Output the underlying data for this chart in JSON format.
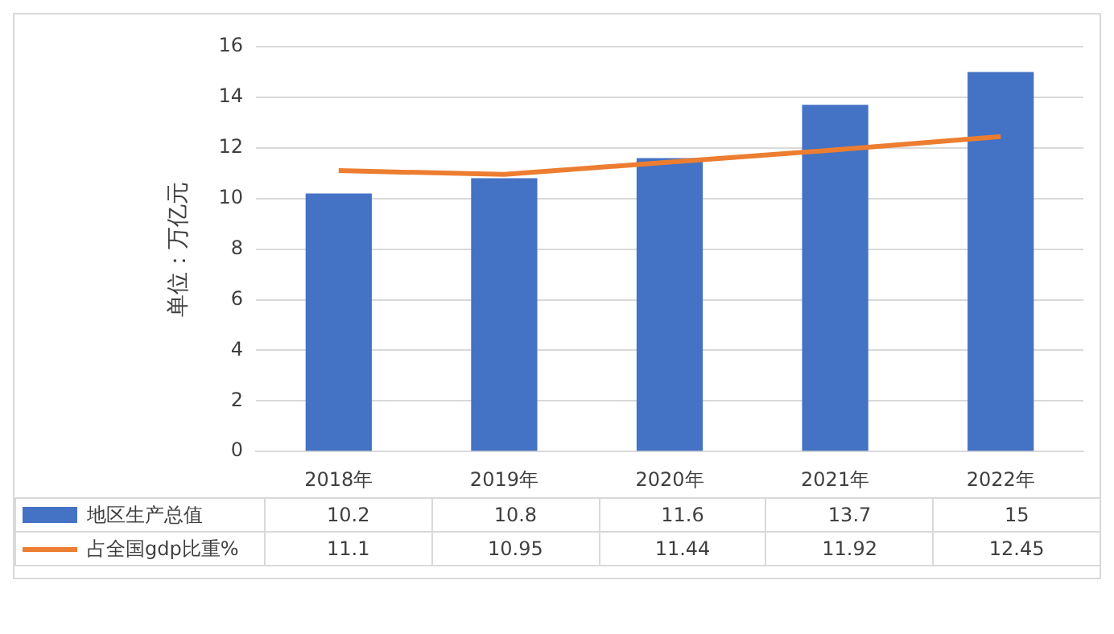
{
  "chart_data": {
    "type": "bar",
    "ylabel": "单位：万亿元",
    "categories": [
      "2018年",
      "2019年",
      "2020年",
      "2021年",
      "2022年"
    ],
    "series": [
      {
        "name": "地区生产总值",
        "color": "#4472c4",
        "values": [
          10.2,
          10.8,
          11.6,
          13.7,
          15
        ]
      },
      {
        "name": "占全国gdp比重%",
        "type": "line",
        "color": "#ed7d31",
        "values": [
          11.1,
          10.95,
          11.44,
          11.92,
          12.45
        ]
      }
    ],
    "ylim": [
      0,
      16
    ],
    "yticks": [
      0,
      2,
      4,
      6,
      8,
      10,
      12,
      14,
      16
    ],
    "grid": "y",
    "legend": "bottom",
    "data_labels": true,
    "marker": "none",
    "line_style": "solid"
  }
}
